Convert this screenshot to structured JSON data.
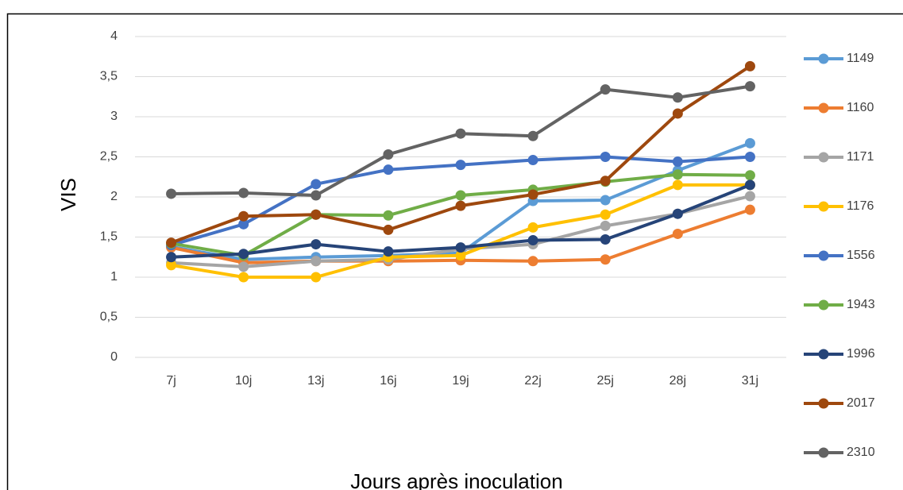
{
  "chart_data": {
    "type": "line",
    "x_label": "Jours après inoculation",
    "y_label": "VIS",
    "categories": [
      "7j",
      "10j",
      "13j",
      "16j",
      "19j",
      "22j",
      "25j",
      "28j",
      "31j"
    ],
    "ylim": [
      0,
      4
    ],
    "yticks": [
      0,
      {
        "value": 0.5,
        "label": "0,5"
      },
      1,
      {
        "value": 1.5,
        "label": "1,5"
      },
      2,
      {
        "value": 2.5,
        "label": "2,5"
      },
      3,
      {
        "value": 3.5,
        "label": "3,5"
      },
      4
    ],
    "grid": true,
    "legend": "right",
    "series": [
      {
        "name": "1149",
        "color": "#5b9bd5",
        "values": [
          1.38,
          1.22,
          1.25,
          1.27,
          1.3,
          1.95,
          1.96,
          2.33,
          2.67
        ]
      },
      {
        "name": "1160",
        "color": "#ed7d31",
        "values": [
          1.37,
          1.18,
          1.2,
          1.2,
          1.21,
          1.2,
          1.22,
          1.54,
          1.84
        ]
      },
      {
        "name": "1171",
        "color": "#a5a5a5",
        "values": [
          1.18,
          1.13,
          1.2,
          1.22,
          1.35,
          1.41,
          1.64,
          1.79,
          2.01
        ]
      },
      {
        "name": "1176",
        "color": "#ffc000",
        "values": [
          1.15,
          1.0,
          1.0,
          1.25,
          1.27,
          1.62,
          1.78,
          2.15,
          2.15
        ]
      },
      {
        "name": "1556",
        "color": "#4472c4",
        "values": [
          1.4,
          1.66,
          2.16,
          2.34,
          2.4,
          2.46,
          2.5,
          2.44,
          2.5
        ]
      },
      {
        "name": "1943",
        "color": "#70ad47",
        "values": [
          1.42,
          1.27,
          1.78,
          1.77,
          2.02,
          2.09,
          2.19,
          2.28,
          2.27
        ]
      },
      {
        "name": "1996",
        "color": "#264478",
        "values": [
          1.25,
          1.29,
          1.41,
          1.32,
          1.37,
          1.46,
          1.47,
          1.79,
          2.15
        ]
      },
      {
        "name": "2017",
        "color": "#9e480e",
        "values": [
          1.43,
          1.76,
          1.78,
          1.59,
          1.89,
          2.03,
          2.2,
          3.04,
          3.63
        ]
      },
      {
        "name": "2310",
        "color": "#636363",
        "values": [
          2.04,
          2.05,
          2.02,
          2.53,
          2.79,
          2.76,
          3.34,
          3.24,
          3.38
        ]
      }
    ]
  }
}
